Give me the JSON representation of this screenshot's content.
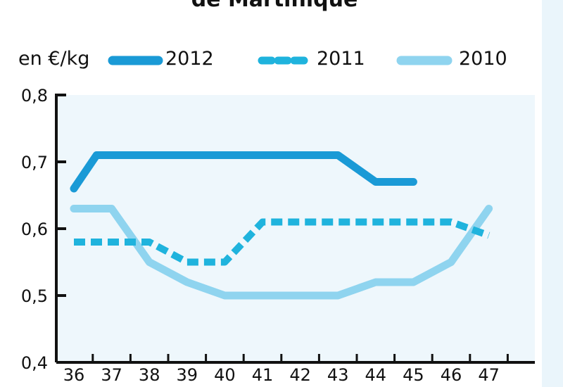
{
  "title": "de Martinique",
  "unit_label": "en €/kg",
  "chart_data": {
    "type": "line",
    "title": "de Martinique",
    "ylabel": "en €/kg",
    "xlabel": "",
    "x": [
      36,
      37,
      38,
      39,
      40,
      41,
      42,
      43,
      44,
      45,
      46,
      47
    ],
    "x_tick_labels": [
      "36",
      "37",
      "38",
      "39",
      "40",
      "41",
      "42",
      "43",
      "44",
      "45",
      "46",
      "47"
    ],
    "ylim": [
      0.4,
      0.8
    ],
    "y_ticks": [
      0.4,
      0.5,
      0.6,
      0.7,
      0.8
    ],
    "y_tick_labels": [
      "0,4",
      "0,5",
      "0,6",
      "0,7",
      "0,8"
    ],
    "legend_position": "top",
    "series": [
      {
        "name": "2012",
        "color": "#1a9ad6",
        "style": "solid-thick",
        "points": [
          [
            36,
            0.66
          ],
          [
            36.6,
            0.71
          ],
          [
            37,
            0.71
          ],
          [
            38,
            0.71
          ],
          [
            39,
            0.71
          ],
          [
            40,
            0.71
          ],
          [
            41,
            0.71
          ],
          [
            42,
            0.71
          ],
          [
            43,
            0.71
          ],
          [
            43.5,
            0.69
          ],
          [
            44,
            0.67
          ],
          [
            45,
            0.67
          ]
        ]
      },
      {
        "name": "2011",
        "color": "#1fb3dd",
        "style": "dashed",
        "points": [
          [
            36,
            0.58
          ],
          [
            37,
            0.58
          ],
          [
            38,
            0.58
          ],
          [
            39,
            0.55
          ],
          [
            40,
            0.55
          ],
          [
            41,
            0.61
          ],
          [
            42,
            0.61
          ],
          [
            43,
            0.61
          ],
          [
            44,
            0.61
          ],
          [
            45,
            0.61
          ],
          [
            46,
            0.61
          ],
          [
            47,
            0.59
          ]
        ]
      },
      {
        "name": "2010",
        "color": "#8fd4ef",
        "style": "solid-thick",
        "points": [
          [
            36,
            0.63
          ],
          [
            37,
            0.63
          ],
          [
            38,
            0.55
          ],
          [
            39,
            0.52
          ],
          [
            40,
            0.5
          ],
          [
            41,
            0.5
          ],
          [
            42,
            0.5
          ],
          [
            43,
            0.5
          ],
          [
            44,
            0.52
          ],
          [
            45,
            0.52
          ],
          [
            46,
            0.55
          ],
          [
            47,
            0.63
          ]
        ]
      }
    ]
  }
}
